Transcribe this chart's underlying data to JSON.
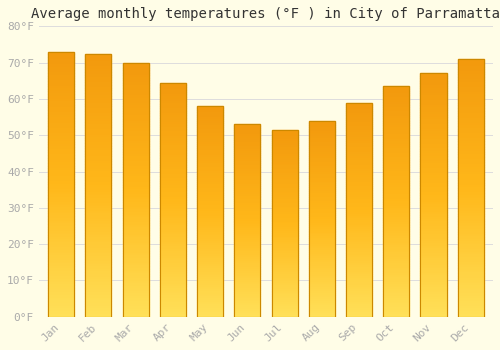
{
  "title": "Average monthly temperatures (°F ) in City of Parramatta",
  "months": [
    "Jan",
    "Feb",
    "Mar",
    "Apr",
    "May",
    "Jun",
    "Jul",
    "Aug",
    "Sep",
    "Oct",
    "Nov",
    "Dec"
  ],
  "values": [
    73,
    72.5,
    70,
    64.5,
    58,
    53,
    51.5,
    54,
    59,
    63.5,
    67,
    71
  ],
  "bar_color_main": "#FFA500",
  "bar_color_light": "#FFD966",
  "bar_color_dark": "#E08000",
  "ylim": [
    0,
    80
  ],
  "yticks": [
    0,
    10,
    20,
    30,
    40,
    50,
    60,
    70,
    80
  ],
  "ytick_labels": [
    "0°F",
    "10°F",
    "20°F",
    "30°F",
    "40°F",
    "50°F",
    "60°F",
    "70°F",
    "80°F"
  ],
  "background_color": "#FFFDE7",
  "grid_color": "#DDDDDD",
  "title_fontsize": 10,
  "tick_fontsize": 8,
  "tick_color": "#AAAAAA",
  "bar_edge_color": "#CC8800",
  "bar_width": 0.7,
  "n_gradient_steps": 100
}
